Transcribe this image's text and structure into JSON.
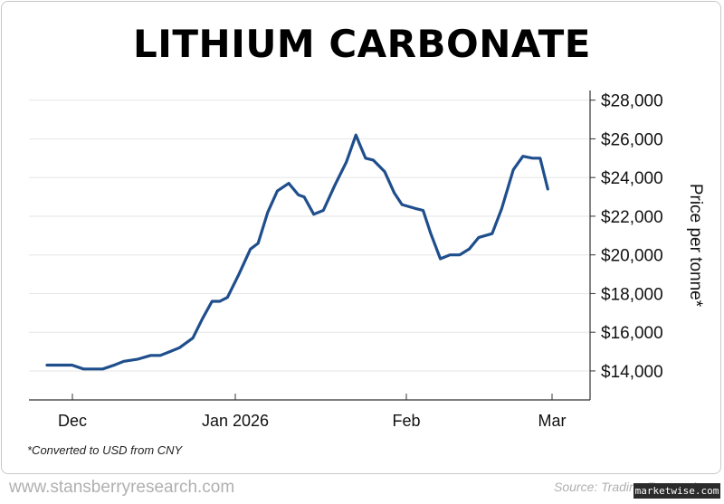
{
  "chart_data": {
    "type": "line",
    "title": "LITHIUM CARBONATE",
    "ylabel": "Price per tonne*",
    "ylim": [
      12500,
      28500
    ],
    "y_ticks": [
      14000,
      16000,
      18000,
      20000,
      22000,
      24000,
      26000,
      28000
    ],
    "y_tick_labels": [
      "$14,000",
      "$16,000",
      "$18,000",
      "$20,000",
      "$22,000",
      "$24,000",
      "$26,000",
      "$28,000"
    ],
    "x_ticks": [
      "Dec",
      "Jan 2026",
      "Feb",
      "Mar"
    ],
    "grid": "horizontal",
    "line_color": "#1f4e8c",
    "series": [
      {
        "x": [
          0,
          6,
          13,
          19,
          24,
          29,
          35,
          40,
          47,
          54,
          59,
          64,
          69,
          76,
          81,
          86,
          90,
          94,
          100,
          106,
          110,
          115,
          120,
          126,
          131,
          134,
          139,
          144,
          150,
          156,
          161,
          163,
          166,
          170,
          176,
          181,
          185,
          192,
          196,
          200,
          205,
          210,
          215,
          220,
          225,
          232,
          237,
          243,
          248,
          253,
          257,
          261
        ],
        "y": [
          14300,
          14300,
          14300,
          14100,
          14100,
          14100,
          14300,
          14500,
          14600,
          14800,
          14800,
          15000,
          15200,
          15700,
          16700,
          17600,
          17600,
          17800,
          19000,
          20300,
          20600,
          22200,
          23300,
          23700,
          23100,
          23000,
          22100,
          22300,
          23600,
          24800,
          26200,
          25700,
          25000,
          24900,
          24300,
          23200,
          22600,
          22400,
          22300,
          21100,
          19800,
          20000,
          20000,
          20300,
          20900,
          21100,
          22400,
          24400,
          25100,
          25000,
          25000,
          23400
        ]
      }
    ]
  },
  "footnote": "*Converted to USD from CNY",
  "footer": {
    "site": "www.stansberryresearch.com",
    "source": "Source: Trading Economics"
  },
  "watermark": "marketwise.com"
}
